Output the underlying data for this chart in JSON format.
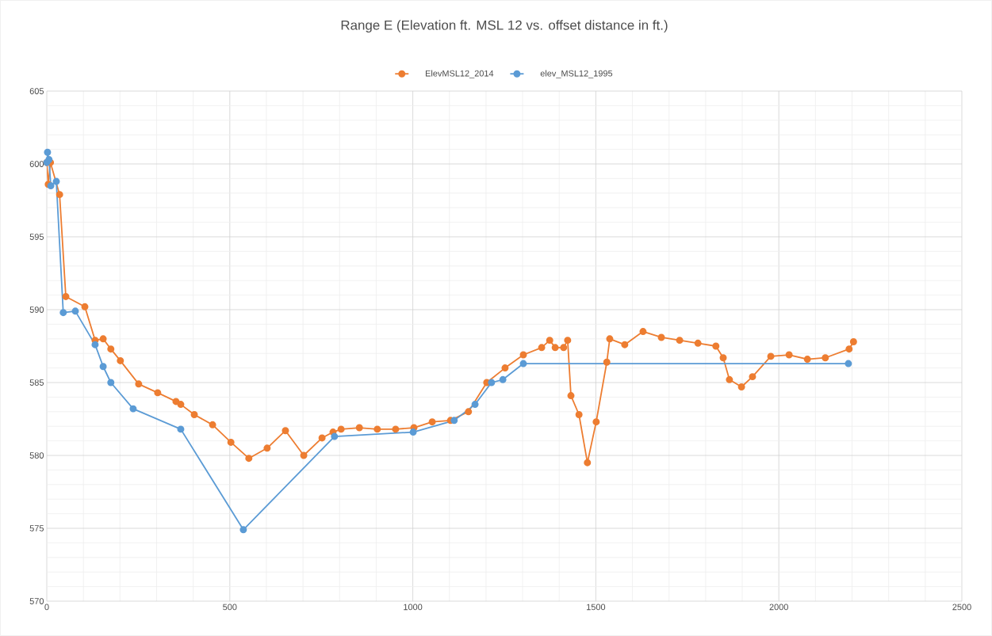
{
  "chart_data": {
    "type": "line",
    "title": "Range E (Elevation ft. MSL 12 vs. offset distance in ft.)",
    "series": [
      {
        "name": "ElevMSL12_2014",
        "color": "#ed7d31",
        "x": [
          0,
          4,
          10,
          35,
          52,
          104,
          132,
          154,
          175,
          201,
          251,
          303,
          353,
          366,
          403,
          453,
          503,
          552,
          602,
          652,
          702,
          752,
          782,
          804,
          854,
          903,
          953,
          1003,
          1053,
          1103,
          1152,
          1202,
          1252,
          1302,
          1352,
          1374,
          1389,
          1412,
          1423,
          1432,
          1454,
          1477,
          1501,
          1530,
          1538,
          1579,
          1629,
          1679,
          1729,
          1779,
          1828,
          1848,
          1865,
          1898,
          1928,
          1978,
          2028,
          2078,
          2127,
          2192,
          2204
        ],
        "values": [
          600.1,
          598.6,
          600.1,
          597.9,
          590.9,
          590.2,
          587.9,
          588.0,
          587.3,
          586.5,
          584.9,
          584.3,
          583.7,
          583.5,
          582.8,
          582.1,
          580.9,
          579.8,
          580.5,
          581.7,
          580.0,
          581.2,
          581.6,
          581.8,
          581.9,
          581.8,
          581.8,
          581.9,
          582.3,
          582.4,
          583.0,
          585.0,
          586.0,
          586.9,
          587.4,
          587.9,
          587.4,
          587.4,
          587.9,
          584.1,
          582.8,
          579.5,
          582.3,
          586.4,
          588.0,
          587.6,
          588.5,
          588.1,
          587.9,
          587.7,
          587.5,
          586.7,
          585.2,
          584.7,
          585.4,
          586.8,
          586.9,
          586.6,
          586.7,
          587.3,
          587.8
        ]
      },
      {
        "name": "elev_MSL12_1995",
        "color": "#5b9bd5",
        "x": [
          0,
          2,
          6,
          11,
          26,
          45,
          78,
          132,
          154,
          175,
          236,
          366,
          537,
          786,
          1001,
          1113,
          1170,
          1215,
          1246,
          1302,
          2190
        ],
        "values": [
          600.1,
          600.8,
          600.3,
          598.5,
          598.8,
          589.8,
          589.9,
          587.6,
          586.1,
          585.0,
          583.2,
          581.8,
          574.9,
          581.3,
          581.6,
          582.4,
          583.5,
          585.0,
          585.2,
          586.3,
          586.3
        ]
      }
    ],
    "xlim": [
      0,
      2500
    ],
    "xticks": [
      0,
      500,
      1000,
      1500,
      2000,
      2500
    ],
    "ylim": [
      570,
      605
    ],
    "yticks": [
      570,
      575,
      580,
      585,
      590,
      595,
      600,
      605
    ],
    "grid": true,
    "legend": "top",
    "marker": "circle",
    "line_style": "solid"
  }
}
